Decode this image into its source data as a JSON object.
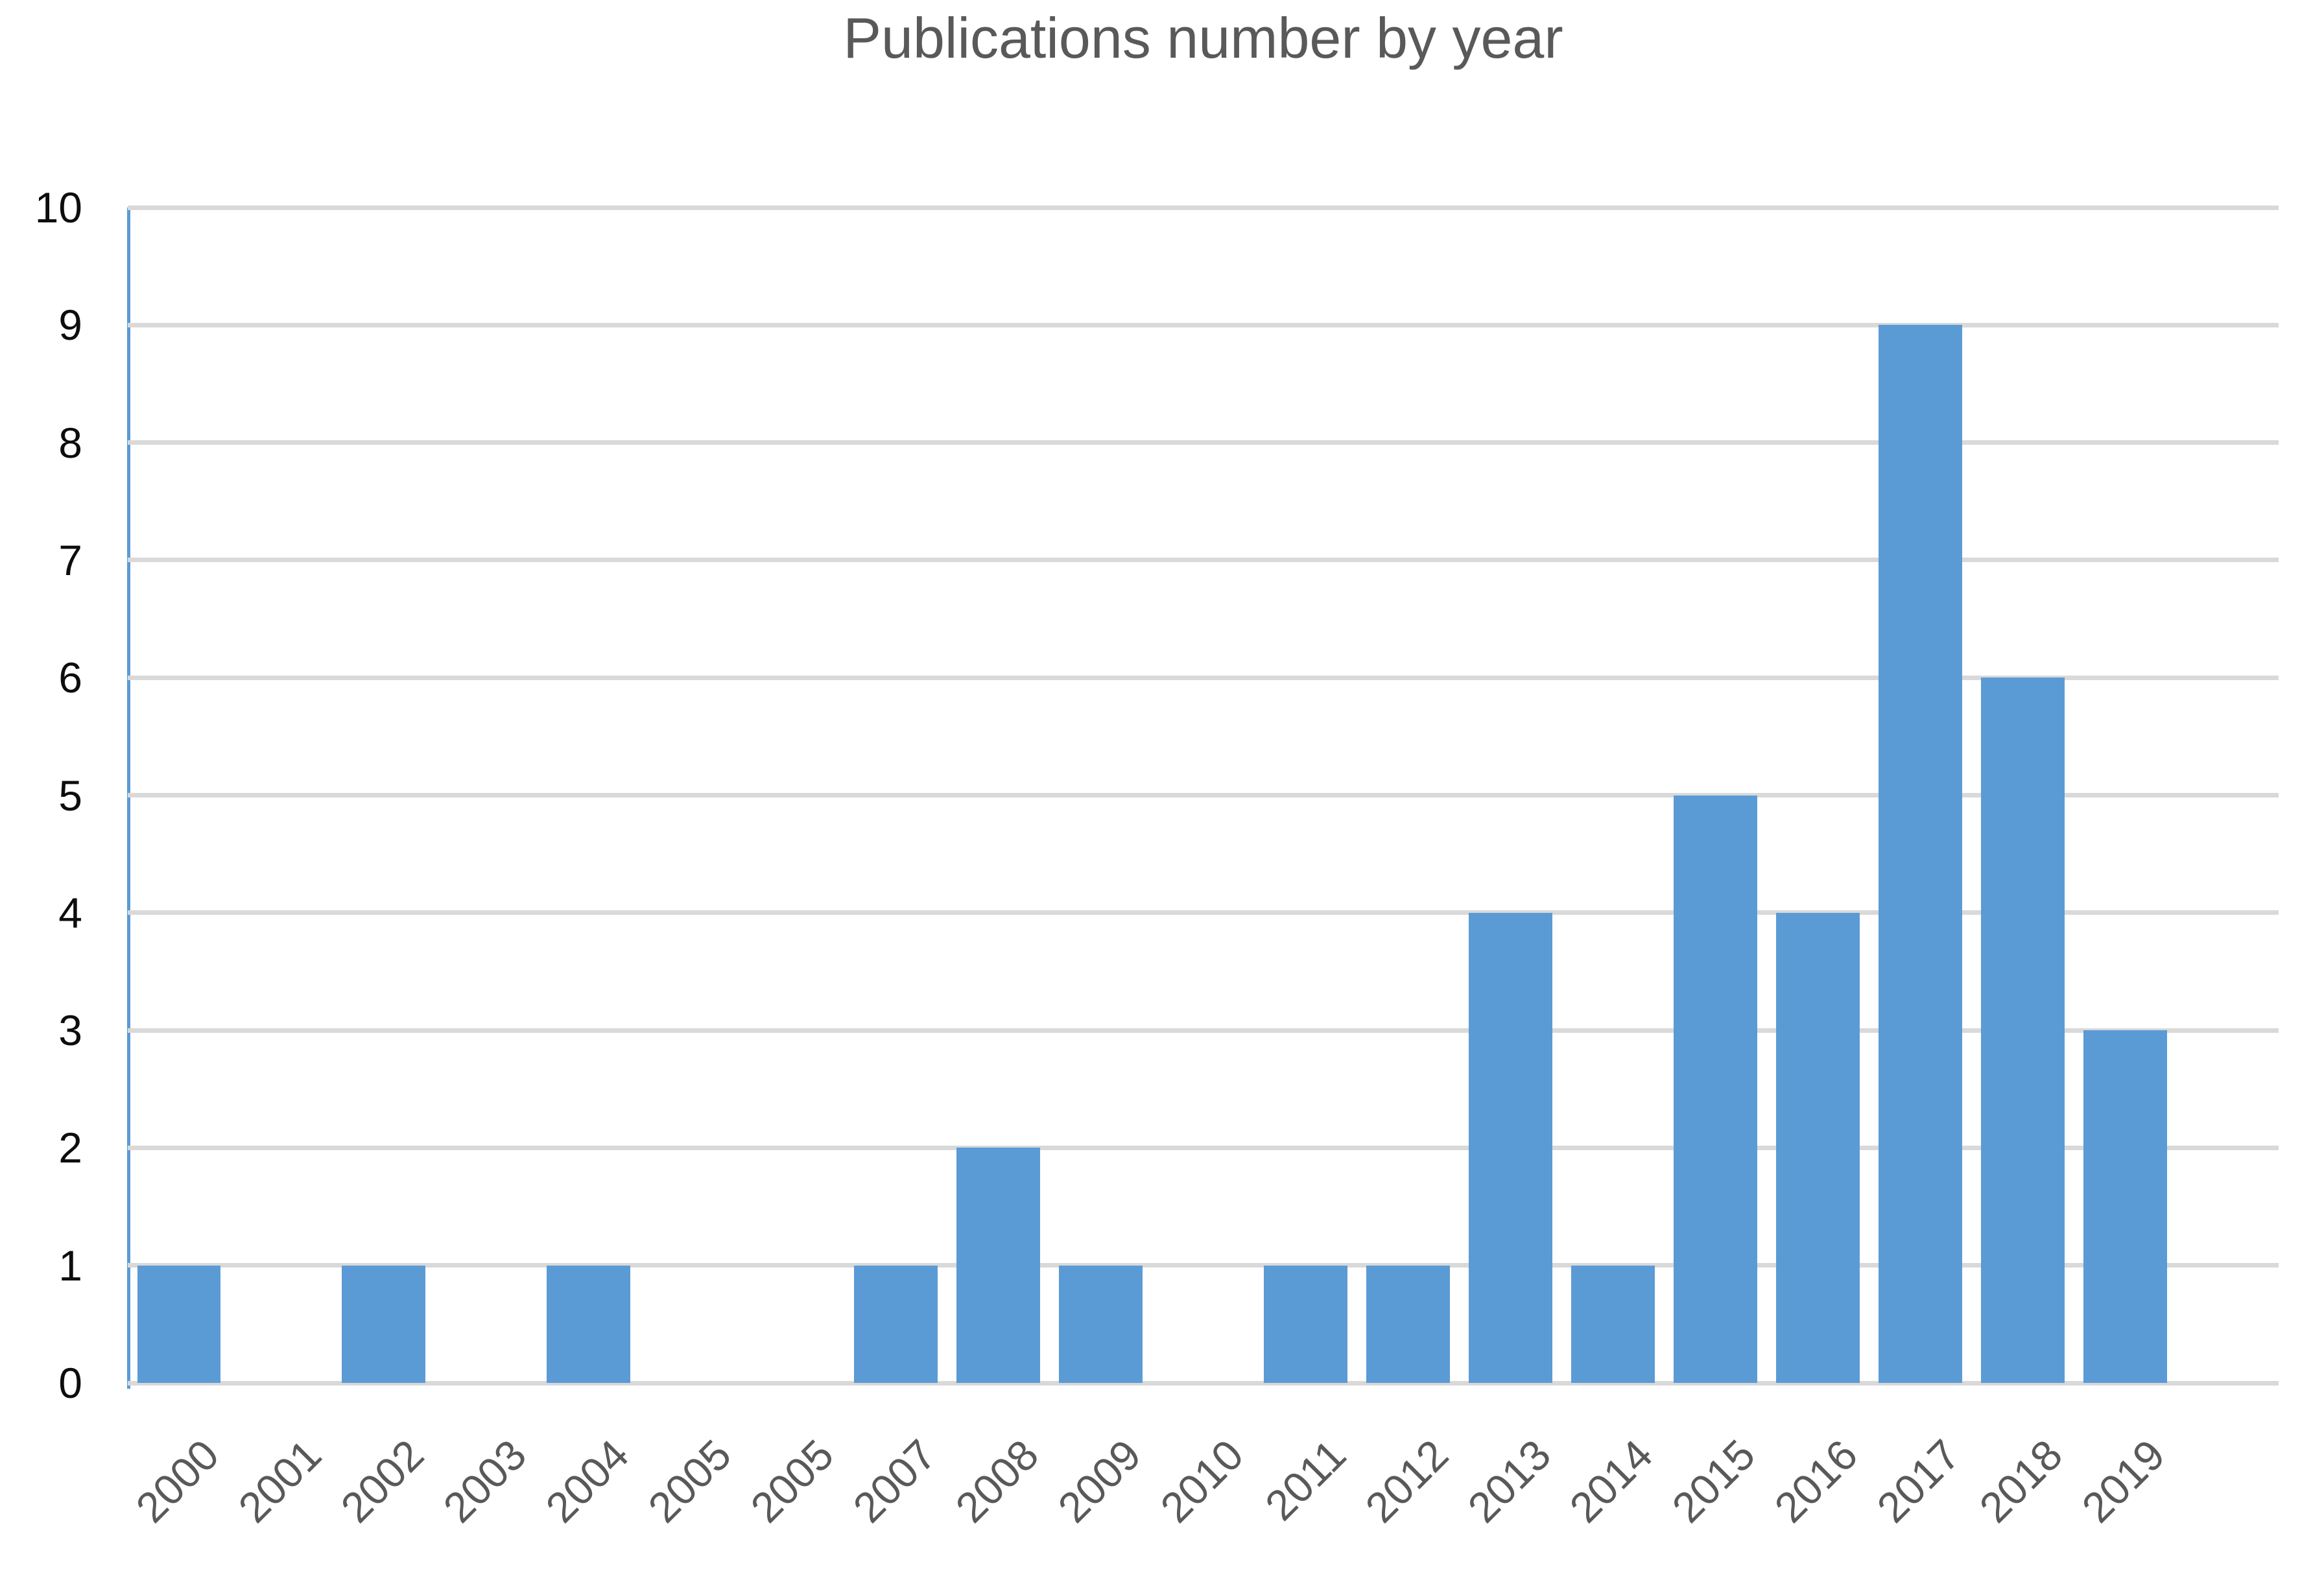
{
  "chart_data": {
    "type": "bar",
    "title": "Publications number by year",
    "categories": [
      "2000",
      "2001",
      "2002",
      "2003",
      "2004",
      "2005",
      "2005",
      "2007",
      "2008",
      "2009",
      "2010",
      "2011",
      "2012",
      "2013",
      "2014",
      "2015",
      "2016",
      "2017",
      "2018",
      "2019"
    ],
    "values": [
      1,
      0,
      1,
      0,
      1,
      0,
      0,
      1,
      2,
      1,
      0,
      1,
      1,
      4,
      1,
      5,
      4,
      9,
      6,
      3
    ],
    "xlabel": "",
    "ylabel": "",
    "ylim": [
      0,
      10
    ],
    "y_ticks": [
      0,
      1,
      2,
      3,
      4,
      5,
      6,
      7,
      8,
      9,
      10
    ],
    "grid": "horizontal",
    "legend_position": "none",
    "colors": {
      "bar": "#5B9BD5",
      "axis_line": "#5B9BD5",
      "gridline": "#D9D9D9",
      "title_text": "#595959",
      "x_tick_text": "#595959",
      "y_tick_text": "#0D0D0D"
    }
  }
}
